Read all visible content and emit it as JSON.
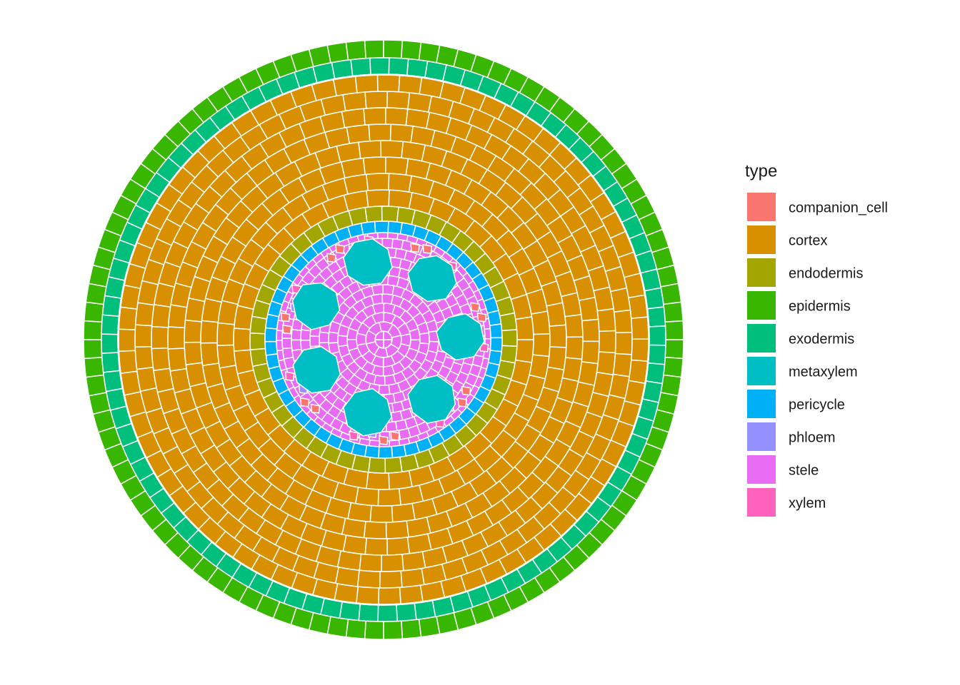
{
  "legend": {
    "title": "type",
    "items": [
      {
        "label": "companion_cell",
        "color": "#F8766D"
      },
      {
        "label": "cortex",
        "color": "#D89000"
      },
      {
        "label": "endodermis",
        "color": "#A3A500"
      },
      {
        "label": "epidermis",
        "color": "#39B600"
      },
      {
        "label": "exodermis",
        "color": "#00BF7D"
      },
      {
        "label": "metaxylem",
        "color": "#00BFC4"
      },
      {
        "label": "pericycle",
        "color": "#00B0F6"
      },
      {
        "label": "phloem",
        "color": "#9590FF"
      },
      {
        "label": "stele",
        "color": "#E76BF3"
      },
      {
        "label": "xylem",
        "color": "#FF62BC"
      }
    ]
  }
}
